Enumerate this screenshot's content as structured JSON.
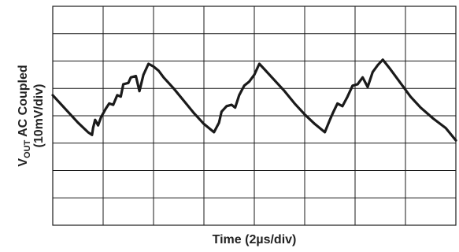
{
  "chart_data": {
    "type": "line",
    "title": "",
    "xlabel": "Time (2µs/div)",
    "ylabel": {
      "main": "V",
      "subscript": "OUT",
      "rest": " AC Coupled",
      "line2": "(10mV/div)"
    },
    "grid": true,
    "x_divisions": 8,
    "y_divisions": 8,
    "xlim": [
      0,
      8
    ],
    "ylim": [
      0,
      8
    ],
    "colors": {
      "trace": "#1a1a1a",
      "grid": "#1a1a1a",
      "background": "#ffffff"
    },
    "series": [
      {
        "x": [
          0.0,
          0.1,
          0.3,
          0.5,
          0.7,
          0.78,
          0.8,
          0.84,
          0.9,
          0.96,
          1.05,
          1.12,
          1.2,
          1.28,
          1.35,
          1.4,
          1.5,
          1.55,
          1.65,
          1.72,
          1.8,
          1.9,
          2.0,
          2.1,
          2.2,
          2.4,
          2.6,
          2.8,
          3.0,
          3.2,
          3.3,
          3.35,
          3.45,
          3.55,
          3.62,
          3.7,
          3.8,
          3.9,
          4.0,
          4.1,
          4.2,
          4.4,
          4.6,
          4.8,
          5.0,
          5.2,
          5.4,
          5.5,
          5.56,
          5.65,
          5.75,
          5.85,
          5.95,
          6.05,
          6.15,
          6.25,
          6.35,
          6.45,
          6.55,
          6.7,
          6.9,
          7.1,
          7.3,
          7.55,
          7.8,
          8.0
        ],
        "y": [
          4.75,
          4.55,
          4.15,
          3.75,
          3.4,
          3.3,
          3.55,
          3.85,
          3.65,
          3.95,
          4.25,
          4.45,
          4.4,
          4.75,
          4.7,
          5.15,
          5.2,
          5.4,
          5.45,
          4.9,
          5.5,
          5.9,
          5.8,
          5.65,
          5.4,
          5.0,
          4.55,
          4.1,
          3.7,
          3.4,
          3.75,
          4.15,
          4.35,
          4.4,
          4.3,
          4.75,
          5.1,
          5.25,
          5.5,
          5.9,
          5.7,
          5.3,
          4.9,
          4.45,
          4.05,
          3.7,
          3.4,
          3.85,
          4.1,
          4.45,
          4.35,
          4.7,
          5.1,
          5.15,
          5.4,
          5.05,
          5.6,
          5.85,
          6.05,
          5.7,
          5.2,
          4.7,
          4.3,
          3.9,
          3.55,
          3.1
        ]
      }
    ]
  }
}
